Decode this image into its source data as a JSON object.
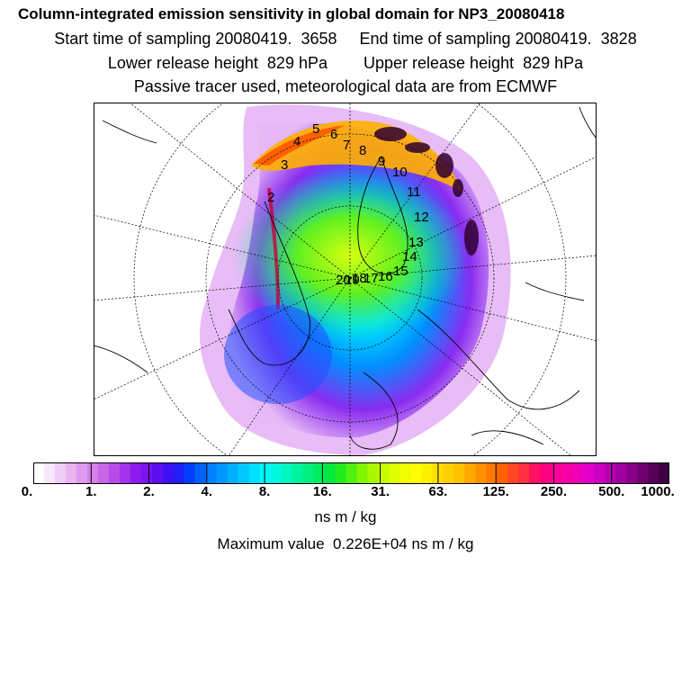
{
  "header": {
    "title": "Column-integrated emission sensitivity in global domain for NP3_20080418",
    "sampling": "Start time of sampling 20080419.  3658     End time of sampling 20080419.  3828",
    "release": "Lower release height  829 hPa        Upper release height  829 hPa",
    "tracer": "Passive tracer used, meteorological data are from ECMWF"
  },
  "map": {
    "track_labels": [
      "2",
      "3",
      "4",
      "5",
      "6",
      "7",
      "8",
      "9",
      "10",
      "11",
      "12",
      "13",
      "14",
      "15",
      "16",
      "17",
      "18",
      "19",
      "20"
    ]
  },
  "legend": {
    "ticks": [
      "0.",
      "1.",
      "2.",
      "4.",
      "8.",
      "16.",
      "31.",
      "63.",
      "125.",
      "250.",
      "500.",
      "1000."
    ],
    "colors": [
      "#ffffff",
      "#f8e6fa",
      "#f0cdf6",
      "#e8b4f2",
      "#df9aee",
      "#d680ea",
      "#c866e8",
      "#b74ce8",
      "#a233ea",
      "#8c1cee",
      "#7a14f0",
      "#5c10f2",
      "#3e10f4",
      "#2020f6",
      "#0040f8",
      "#0060fa",
      "#0080fc",
      "#0098fe",
      "#00b0ff",
      "#00c8ff",
      "#00e0ff",
      "#00f8f8",
      "#00f8e0",
      "#00f8c0",
      "#00f4a0",
      "#00f080",
      "#00ec60",
      "#00e840",
      "#20ec20",
      "#50f010",
      "#80f400",
      "#a8f800",
      "#c8fc00",
      "#e0ff00",
      "#f0ff00",
      "#ffff00",
      "#fff000",
      "#ffe000",
      "#ffd000",
      "#ffc000",
      "#ffa800",
      "#ff9000",
      "#ff7800",
      "#ff6000",
      "#ff4820",
      "#ff3040",
      "#ff1060",
      "#ff0080",
      "#ff0098",
      "#f800a8",
      "#f000b8",
      "#e000c8",
      "#cc00c0",
      "#b800b0",
      "#a000a0",
      "#880088",
      "#700070",
      "#580058",
      "#400040"
    ],
    "unit": "ns m / kg",
    "max_value": "Maximum value  0.226E+04 ns m / kg"
  }
}
